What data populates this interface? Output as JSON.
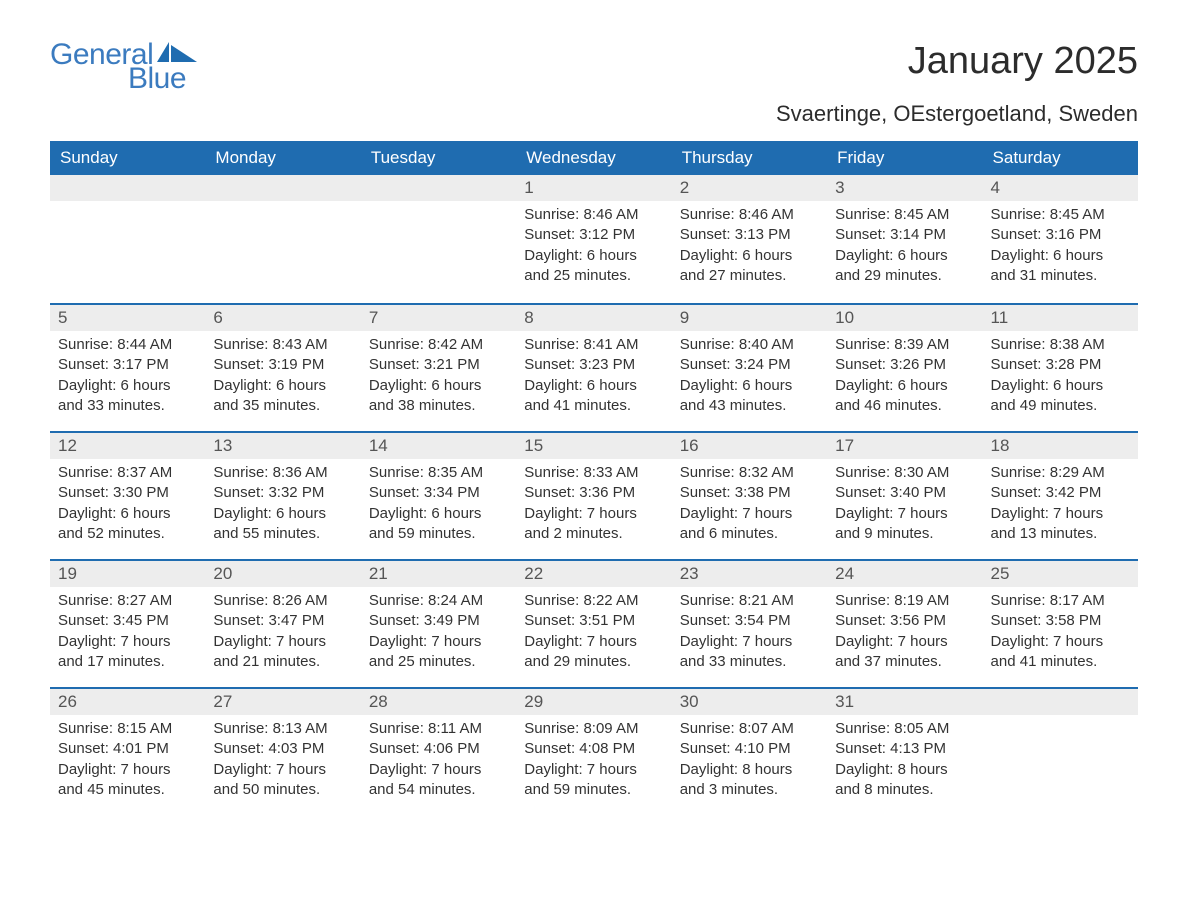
{
  "brand": {
    "word1": "General",
    "word2": "Blue",
    "accent_color": "#3b7bbf",
    "flag_color": "#1f6cb0"
  },
  "title": "January 2025",
  "location": "Svaertinge, OEstergoetland, Sweden",
  "colors": {
    "header_bg": "#1f6cb0",
    "header_text": "#ffffff",
    "daynum_bg": "#ededed",
    "daynum_text": "#555555",
    "body_text": "#333333",
    "row_border": "#1f6cb0",
    "page_bg": "#ffffff"
  },
  "days_of_week": [
    "Sunday",
    "Monday",
    "Tuesday",
    "Wednesday",
    "Thursday",
    "Friday",
    "Saturday"
  ],
  "weeks": [
    [
      {
        "blank": true
      },
      {
        "blank": true
      },
      {
        "blank": true
      },
      {
        "n": "1",
        "sunrise": "8:46 AM",
        "sunset": "3:12 PM",
        "daylight": "6 hours and 25 minutes."
      },
      {
        "n": "2",
        "sunrise": "8:46 AM",
        "sunset": "3:13 PM",
        "daylight": "6 hours and 27 minutes."
      },
      {
        "n": "3",
        "sunrise": "8:45 AM",
        "sunset": "3:14 PM",
        "daylight": "6 hours and 29 minutes."
      },
      {
        "n": "4",
        "sunrise": "8:45 AM",
        "sunset": "3:16 PM",
        "daylight": "6 hours and 31 minutes."
      }
    ],
    [
      {
        "n": "5",
        "sunrise": "8:44 AM",
        "sunset": "3:17 PM",
        "daylight": "6 hours and 33 minutes."
      },
      {
        "n": "6",
        "sunrise": "8:43 AM",
        "sunset": "3:19 PM",
        "daylight": "6 hours and 35 minutes."
      },
      {
        "n": "7",
        "sunrise": "8:42 AM",
        "sunset": "3:21 PM",
        "daylight": "6 hours and 38 minutes."
      },
      {
        "n": "8",
        "sunrise": "8:41 AM",
        "sunset": "3:23 PM",
        "daylight": "6 hours and 41 minutes."
      },
      {
        "n": "9",
        "sunrise": "8:40 AM",
        "sunset": "3:24 PM",
        "daylight": "6 hours and 43 minutes."
      },
      {
        "n": "10",
        "sunrise": "8:39 AM",
        "sunset": "3:26 PM",
        "daylight": "6 hours and 46 minutes."
      },
      {
        "n": "11",
        "sunrise": "8:38 AM",
        "sunset": "3:28 PM",
        "daylight": "6 hours and 49 minutes."
      }
    ],
    [
      {
        "n": "12",
        "sunrise": "8:37 AM",
        "sunset": "3:30 PM",
        "daylight": "6 hours and 52 minutes."
      },
      {
        "n": "13",
        "sunrise": "8:36 AM",
        "sunset": "3:32 PM",
        "daylight": "6 hours and 55 minutes."
      },
      {
        "n": "14",
        "sunrise": "8:35 AM",
        "sunset": "3:34 PM",
        "daylight": "6 hours and 59 minutes."
      },
      {
        "n": "15",
        "sunrise": "8:33 AM",
        "sunset": "3:36 PM",
        "daylight": "7 hours and 2 minutes."
      },
      {
        "n": "16",
        "sunrise": "8:32 AM",
        "sunset": "3:38 PM",
        "daylight": "7 hours and 6 minutes."
      },
      {
        "n": "17",
        "sunrise": "8:30 AM",
        "sunset": "3:40 PM",
        "daylight": "7 hours and 9 minutes."
      },
      {
        "n": "18",
        "sunrise": "8:29 AM",
        "sunset": "3:42 PM",
        "daylight": "7 hours and 13 minutes."
      }
    ],
    [
      {
        "n": "19",
        "sunrise": "8:27 AM",
        "sunset": "3:45 PM",
        "daylight": "7 hours and 17 minutes."
      },
      {
        "n": "20",
        "sunrise": "8:26 AM",
        "sunset": "3:47 PM",
        "daylight": "7 hours and 21 minutes."
      },
      {
        "n": "21",
        "sunrise": "8:24 AM",
        "sunset": "3:49 PM",
        "daylight": "7 hours and 25 minutes."
      },
      {
        "n": "22",
        "sunrise": "8:22 AM",
        "sunset": "3:51 PM",
        "daylight": "7 hours and 29 minutes."
      },
      {
        "n": "23",
        "sunrise": "8:21 AM",
        "sunset": "3:54 PM",
        "daylight": "7 hours and 33 minutes."
      },
      {
        "n": "24",
        "sunrise": "8:19 AM",
        "sunset": "3:56 PM",
        "daylight": "7 hours and 37 minutes."
      },
      {
        "n": "25",
        "sunrise": "8:17 AM",
        "sunset": "3:58 PM",
        "daylight": "7 hours and 41 minutes."
      }
    ],
    [
      {
        "n": "26",
        "sunrise": "8:15 AM",
        "sunset": "4:01 PM",
        "daylight": "7 hours and 45 minutes."
      },
      {
        "n": "27",
        "sunrise": "8:13 AM",
        "sunset": "4:03 PM",
        "daylight": "7 hours and 50 minutes."
      },
      {
        "n": "28",
        "sunrise": "8:11 AM",
        "sunset": "4:06 PM",
        "daylight": "7 hours and 54 minutes."
      },
      {
        "n": "29",
        "sunrise": "8:09 AM",
        "sunset": "4:08 PM",
        "daylight": "7 hours and 59 minutes."
      },
      {
        "n": "30",
        "sunrise": "8:07 AM",
        "sunset": "4:10 PM",
        "daylight": "8 hours and 3 minutes."
      },
      {
        "n": "31",
        "sunrise": "8:05 AM",
        "sunset": "4:13 PM",
        "daylight": "8 hours and 8 minutes."
      },
      {
        "blank": true
      }
    ]
  ],
  "labels": {
    "sunrise_prefix": "Sunrise: ",
    "sunset_prefix": "Sunset: ",
    "daylight_prefix": "Daylight: "
  }
}
